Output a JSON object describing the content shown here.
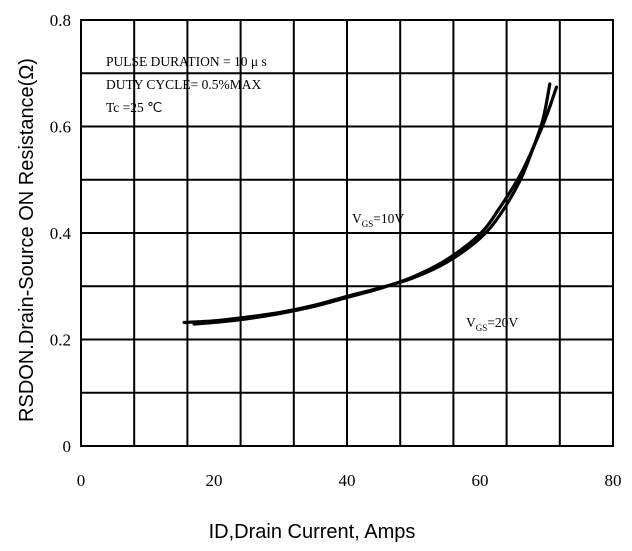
{
  "chart_data": {
    "type": "line",
    "xlabel": "ID,Drain Current, Amps",
    "ylabel": "RSDON.Drain-Source ON Resistance(Ω)",
    "xlim": [
      0,
      80
    ],
    "ylim": [
      0,
      0.8
    ],
    "x_ticks": [
      "0",
      "20",
      "40",
      "60",
      "80"
    ],
    "y_ticks": [
      "0",
      "0.2",
      "0.4",
      "0.6",
      "0.8"
    ],
    "grid": true,
    "x_grid_step": 8,
    "y_grid_step": 0.1,
    "annotations": [
      "PULSE    DURATION = 10 μ s",
      "DUTY   CYCLE= 0.5%MAX",
      "Tc =25  ℃"
    ],
    "series": [
      {
        "name": "VGS=10V",
        "label_main": "V",
        "label_sub": "GS",
        "label_value": "=10V",
        "x": [
          15.5,
          20,
          25,
          30,
          35,
          40,
          45,
          50,
          55,
          60,
          63,
          66,
          68,
          69.5,
          70.5
        ],
        "y": [
          0.232,
          0.235,
          0.242,
          0.251,
          0.264,
          0.281,
          0.297,
          0.316,
          0.345,
          0.39,
          0.434,
          0.498,
          0.56,
          0.615,
          0.68
        ]
      },
      {
        "name": "VGS=20V",
        "label_main": "V",
        "label_sub": "GS",
        "label_value": "=20V",
        "x": [
          17,
          20,
          25,
          30,
          35,
          40,
          45,
          50,
          55,
          60,
          63,
          66,
          68,
          70,
          71.5
        ],
        "y": [
          0.229,
          0.232,
          0.239,
          0.249,
          0.262,
          0.279,
          0.296,
          0.318,
          0.35,
          0.398,
          0.448,
          0.508,
          0.56,
          0.62,
          0.674
        ]
      }
    ]
  }
}
